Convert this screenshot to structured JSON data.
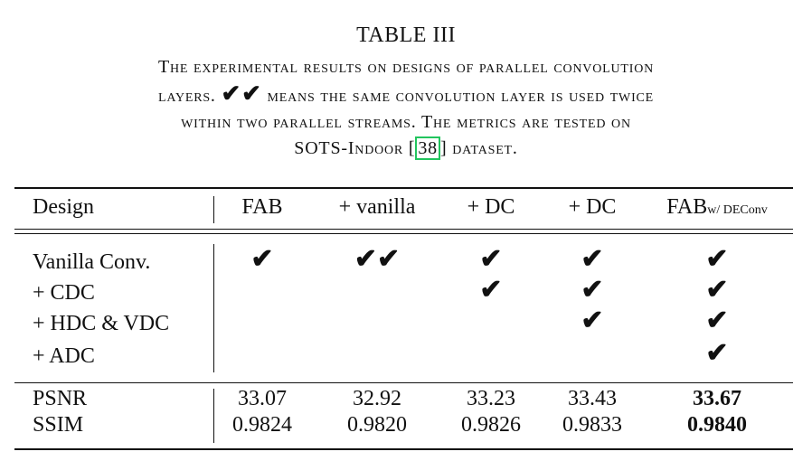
{
  "table": {
    "title": "TABLE III",
    "caption": {
      "line1": "The experimental results on designs of parallel convolution",
      "line2_pre": "layers.",
      "line2_checks": "✔✔",
      "line2_post": "means the same convolution layer is used twice",
      "line3": "within two parallel streams. The metrics are tested on",
      "line4_pre": "SOTS-Indoor [",
      "line4_cite": "38",
      "line4_post": "] dataset."
    },
    "headers": {
      "design": "Design",
      "fab": "FAB",
      "vanilla": "+ vanilla",
      "dc1": "+ DC",
      "dc2": "+ DC",
      "fab_w_main": "FAB",
      "fab_w_sub": "w/ DEConv"
    },
    "rows": {
      "r1": "Vanilla Conv.",
      "r2": "+ CDC",
      "r3": "+ HDC & VDC",
      "r4": "+ ADC"
    },
    "checks": {
      "single": "✔",
      "double": "✔✔",
      "matrix": [
        [
          "single",
          "double",
          "single",
          "single",
          "single"
        ],
        [
          "",
          "",
          "single",
          "single",
          "single"
        ],
        [
          "",
          "",
          "",
          "single",
          "single"
        ],
        [
          "",
          "",
          "",
          "",
          "single"
        ]
      ]
    },
    "metrics": {
      "psnr_label": "PSNR",
      "ssim_label": "SSIM",
      "psnr": [
        "33.07",
        "32.92",
        "33.23",
        "33.43",
        "33.67"
      ],
      "ssim": [
        "0.9824",
        "0.9820",
        "0.9826",
        "0.9833",
        "0.9840"
      ],
      "best_index": 4
    }
  }
}
